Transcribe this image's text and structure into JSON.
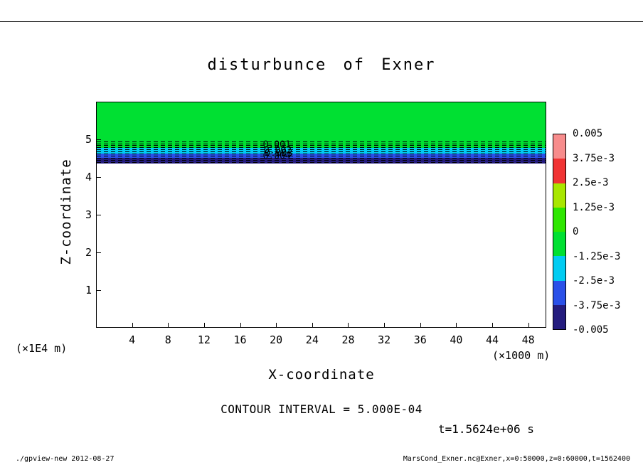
{
  "page": {
    "footer_left": "./gpview-new  2012-08-27",
    "footer_right": "MarsCond_Exner.nc@Exner,x=0:50000,z=0:60000,t=1562400"
  },
  "chart_data": {
    "type": "heatmap",
    "title": "disturbunce of Exner",
    "xlabel": "X-coordinate",
    "ylabel": "Z-coordinate",
    "x_unit_label": "(×1000 m)",
    "y_unit_label": "(×1E4 m)",
    "xlim": [
      0,
      50
    ],
    "ylim": [
      0,
      6
    ],
    "x_ticks": [
      4,
      8,
      12,
      16,
      20,
      24,
      28,
      32,
      36,
      40,
      44,
      48
    ],
    "y_ticks": [
      1,
      2,
      3,
      4,
      5
    ],
    "grid": false,
    "legend_position": "colorbar-right",
    "annotations": {
      "contour_interval": "CONTOUR INTERVAL = 5.000E-04",
      "time": "t=1.5624e+06 s",
      "contour_labels": [
        {
          "text": "0.001",
          "x": 20.0,
          "z": 4.87
        },
        {
          "text": "0.002",
          "x": 20.1,
          "z": 4.71
        },
        {
          "text": "0.003",
          "x": 20.2,
          "z": 4.64
        },
        {
          "text": "0.004",
          "x": 20.0,
          "z": 4.57
        }
      ]
    },
    "field_bands": [
      {
        "z_from": 4.8,
        "z_to": 6.0,
        "value_range": "-1.25e-3 to 0",
        "color": "#00e032"
      },
      {
        "z_from": 4.64,
        "z_to": 4.8,
        "value_range": "-2.5e-3 to -1.25e-3",
        "color": "#00ccf2"
      },
      {
        "z_from": 4.52,
        "z_to": 4.64,
        "value_range": "-3.75e-3 to -2.5e-3",
        "color": "#2a50e8"
      },
      {
        "z_from": 4.37,
        "z_to": 4.52,
        "value_range": "-0.005 to -3.75e-3",
        "color": "#241c7e"
      },
      {
        "z_from": 0.0,
        "z_to": 4.37,
        "value_range": "0 / no shading",
        "color": "#ffffff"
      }
    ],
    "contour_lines_z": [
      4.97,
      4.915,
      4.86,
      4.805,
      4.75,
      4.695,
      4.64,
      4.585,
      4.53,
      4.475,
      4.42
    ],
    "colorbar": {
      "labels": [
        "0.005",
        "3.75e-3",
        "2.5e-3",
        "1.25e-3",
        "0",
        "-1.25e-3",
        "-2.5e-3",
        "-3.75e-3",
        "-0.005"
      ],
      "cell_colors_top_to_bottom": [
        "#f78c8c",
        "#f03333",
        "#a8e600",
        "#2ee600",
        "#00e032",
        "#00ccf2",
        "#2a50e8",
        "#241c7e"
      ]
    }
  }
}
